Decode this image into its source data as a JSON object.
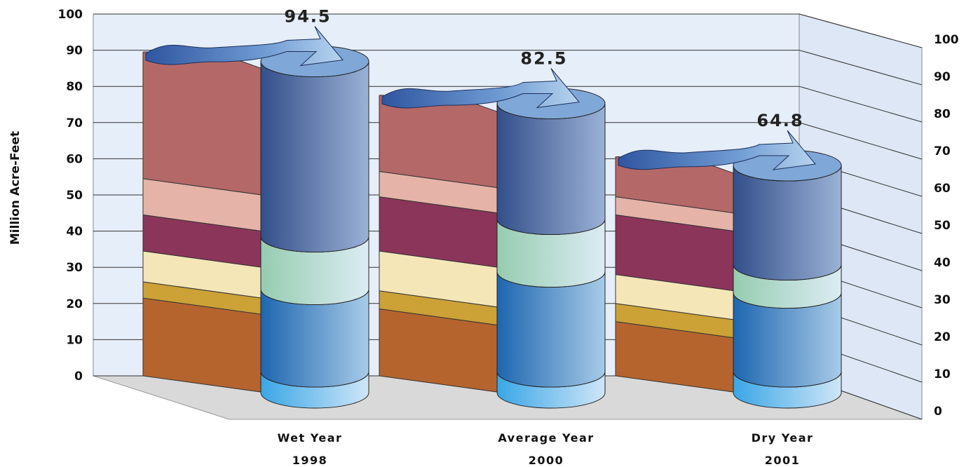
{
  "chart_data": {
    "type": "bar",
    "ylabel": "Million Acre-Feet",
    "ylim": [
      0,
      100
    ],
    "y_ticks": [
      "0",
      "10",
      "20",
      "30",
      "40",
      "50",
      "60",
      "70",
      "80",
      "90",
      "100"
    ],
    "categories": [
      {
        "line1": "Wet Year",
        "line2": "1998"
      },
      {
        "line1": "Average Year",
        "line2": "2000"
      },
      {
        "line1": "Dry Year",
        "line2": "2001"
      }
    ],
    "totals": [
      "94.5",
      "82.5",
      "64.8"
    ],
    "stacked_bars": [
      [
        21.5,
        4.5,
        8.5,
        10,
        10,
        35
      ],
      [
        18.5,
        5,
        11,
        15,
        7,
        21
      ],
      [
        15,
        5,
        8,
        16.5,
        5,
        11
      ]
    ],
    "stacked_bar_colors": [
      "#b5642e",
      "#cca136",
      "#f5e6b8",
      "#8b355a",
      "#e6b3a8",
      "#b56868"
    ],
    "cylinders": [
      [
        6,
        23.5,
        15,
        50
      ],
      [
        6,
        28.5,
        15,
        33
      ],
      [
        6,
        22.5,
        8,
        28.3
      ]
    ],
    "cylinder_colors": [
      [
        "#3aa6e6",
        "#cfe6f8"
      ],
      [
        "#1e66b0",
        "#a8cbe8"
      ],
      [
        "#96ccb0",
        "#dcecf4"
      ],
      [
        "#334f8a",
        "#9bb2d6"
      ]
    ],
    "grid": true
  }
}
